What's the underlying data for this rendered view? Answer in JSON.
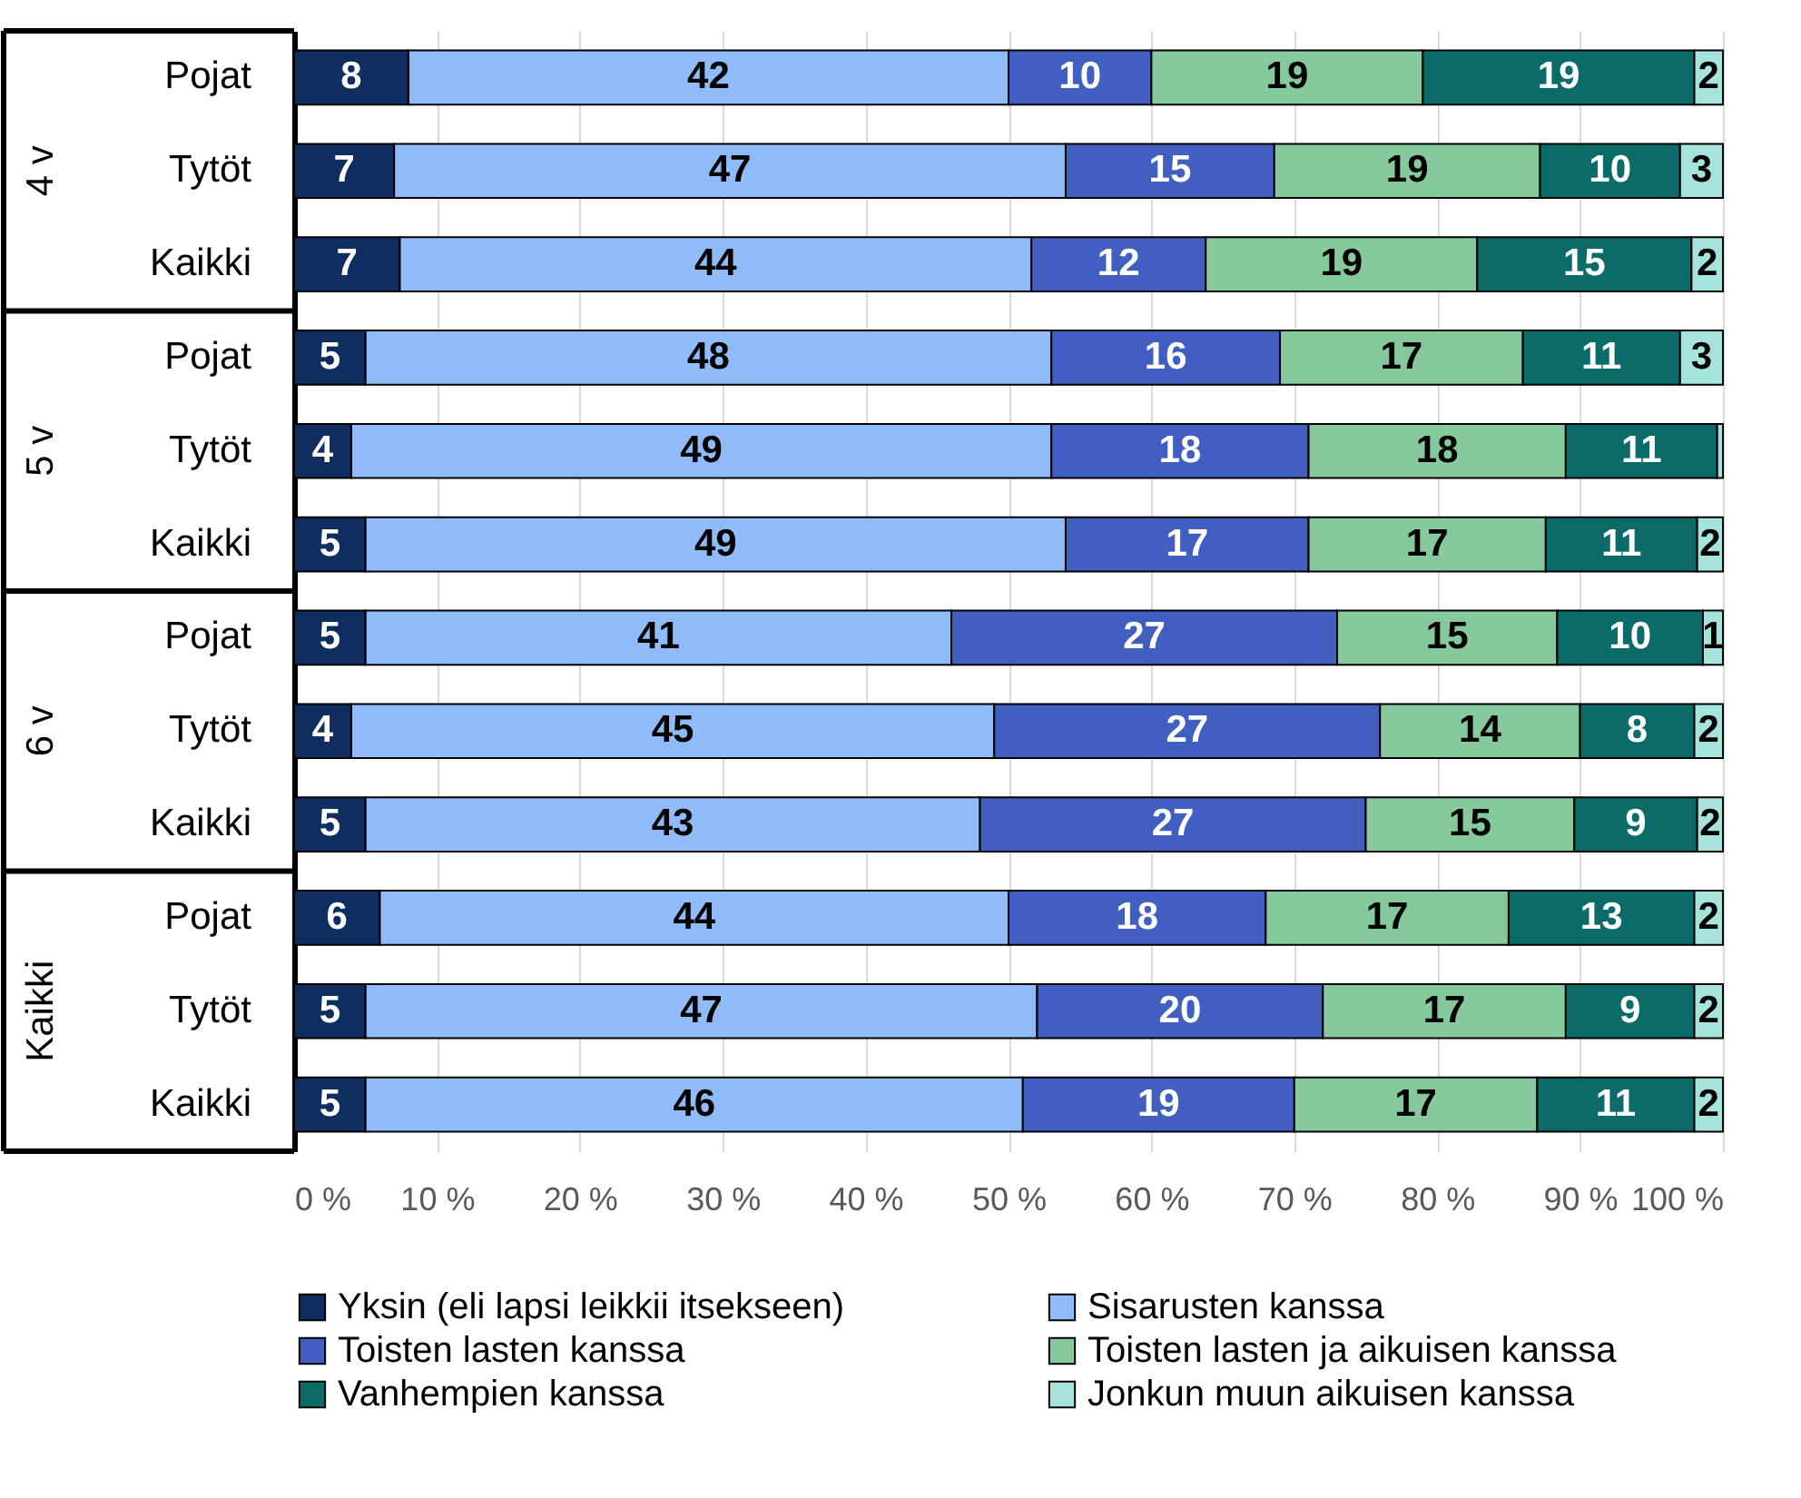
{
  "chart_data": {
    "type": "bar",
    "orientation": "horizontal",
    "stacked": true,
    "grid": "x",
    "legend": "bottom",
    "categories": [
      "Pojat",
      "Tytöt",
      "Kaikki",
      "Pojat",
      "Tytöt",
      "Kaikki",
      "Pojat",
      "Tytöt",
      "Kaikki",
      "Pojat",
      "Tytöt",
      "Kaikki"
    ],
    "annotations": [
      "4 v",
      "5 v",
      "6 v",
      "Kaikki"
    ],
    "xlim": [
      0,
      100
    ],
    "xticks": [
      {
        "value": 0,
        "label": "0 %"
      },
      {
        "value": 10,
        "label": "10 %"
      },
      {
        "value": 20,
        "label": "20 %"
      },
      {
        "value": 30,
        "label": "30 %"
      },
      {
        "value": 40,
        "label": "40 %"
      },
      {
        "value": 50,
        "label": "50 %"
      },
      {
        "value": 60,
        "label": "60 %"
      },
      {
        "value": 70,
        "label": "70 %"
      },
      {
        "value": 80,
        "label": "80 %"
      },
      {
        "value": 90,
        "label": "90 %"
      },
      {
        "value": 100,
        "label": "100 %"
      }
    ],
    "series": [
      {
        "name": "Yksin (eli lapsi leikkii itsekseen)",
        "color": "#0f2d5e",
        "values": [
          8,
          7,
          7.4,
          5,
          4,
          5,
          5,
          4,
          5,
          6,
          5,
          5
        ],
        "value_labels": [
          "8",
          "7",
          "7",
          "5",
          "4",
          "5",
          "5",
          "4",
          "5",
          "6",
          "5",
          "5"
        ]
      },
      {
        "name": "Sisarusten kanssa",
        "color": "#8fbcf8",
        "values": [
          42,
          47,
          44.2,
          48,
          49,
          49,
          41,
          45,
          43,
          44,
          47,
          46
        ],
        "value_labels": [
          "42",
          "47",
          "44",
          "48",
          "49",
          "49",
          "41",
          "45",
          "43",
          "44",
          "47",
          "46"
        ]
      },
      {
        "name": "Toisten lasten kanssa",
        "color": "#405fc0",
        "values": [
          10,
          14.6,
          12.2,
          16,
          18,
          17,
          27,
          27,
          27,
          18,
          20,
          19
        ],
        "value_labels": [
          "10",
          "15",
          "12",
          "16",
          "18",
          "17",
          "27",
          "27",
          "27",
          "18",
          "20",
          "19"
        ]
      },
      {
        "name": "Toisten lasten ja aikuisen kanssa",
        "color": "#86c99d",
        "values": [
          19,
          18.6,
          19,
          17,
          18,
          16.6,
          15.4,
          14,
          14.6,
          17,
          17,
          17
        ],
        "value_labels": [
          "19",
          "19",
          "19",
          "17",
          "18",
          "17",
          "15",
          "14",
          "15",
          "17",
          "17",
          "17"
        ]
      },
      {
        "name": "Vanhempien kanssa",
        "color": "#0a6b69",
        "values": [
          19,
          9.8,
          15,
          11,
          10.6,
          10.6,
          10.2,
          8,
          8.6,
          13,
          9,
          11
        ],
        "value_labels": [
          "19",
          "10",
          "15",
          "11",
          "11",
          "11",
          "10",
          "8",
          "9",
          "13",
          "9",
          "11"
        ]
      },
      {
        "name": "Jonkun muun aikuisen kanssa",
        "color": "#a6e3dc",
        "values": [
          2,
          3,
          2.2,
          3,
          0.4,
          1.8,
          1.4,
          2,
          1.8,
          2,
          2,
          2
        ],
        "value_labels": [
          "2",
          "3",
          "2",
          "3",
          null,
          "2",
          "1",
          "2",
          "2",
          "2",
          "2",
          "2"
        ]
      }
    ]
  }
}
